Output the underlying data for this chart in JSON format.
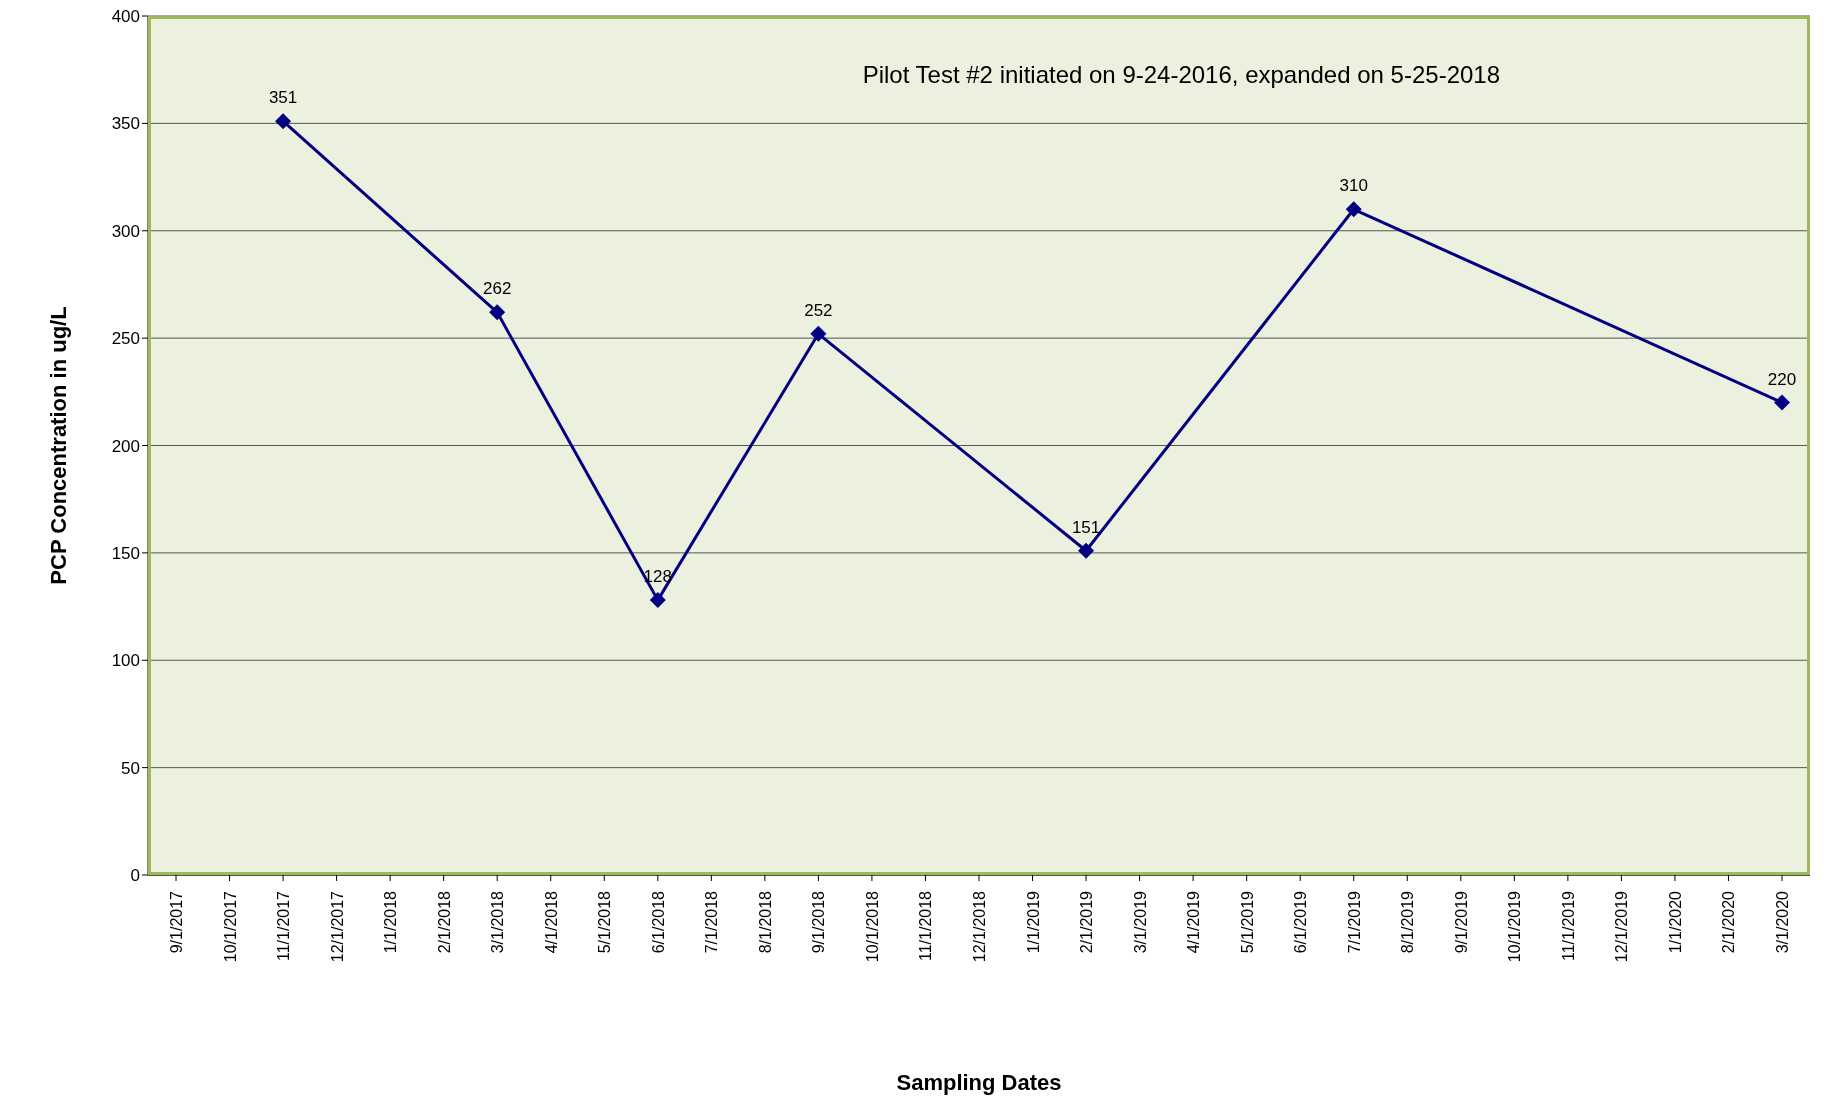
{
  "chart_data": {
    "type": "line",
    "xlabel": "Sampling Dates",
    "ylabel": "PCP Concentration in ug/L",
    "annotations": [
      "Pilot Test #2 initiated on 9-24-2016, expanded on 5-25-2018"
    ],
    "categories": [
      "9/1/2017",
      "10/1/2017",
      "11/1/2017",
      "12/1/2017",
      "1/1/2018",
      "2/1/2018",
      "3/1/2018",
      "4/1/2018",
      "5/1/2018",
      "6/1/2018",
      "7/1/2018",
      "8/1/2018",
      "9/1/2018",
      "10/1/2018",
      "11/1/2018",
      "12/1/2018",
      "1/1/2019",
      "2/1/2019",
      "3/1/2019",
      "4/1/2019",
      "5/1/2019",
      "6/1/2019",
      "7/1/2019",
      "8/1/2019",
      "9/1/2019",
      "10/1/2019",
      "11/1/2019",
      "12/1/2019",
      "1/1/2020",
      "2/1/2020",
      "3/1/2020"
    ],
    "series": [
      {
        "color": "#000080",
        "values": [
          null,
          null,
          351,
          null,
          null,
          null,
          262,
          null,
          null,
          128,
          null,
          null,
          252,
          null,
          null,
          null,
          null,
          151,
          null,
          null,
          null,
          null,
          310,
          null,
          null,
          null,
          null,
          null,
          null,
          null,
          220
        ]
      }
    ],
    "ylim": [
      0,
      400
    ],
    "yticks": [
      0,
      50,
      100,
      150,
      200,
      250,
      300,
      350,
      400
    ],
    "grid": "y",
    "marker": "diamond",
    "line_style": "solid",
    "data_labels": true,
    "legend": false
  }
}
